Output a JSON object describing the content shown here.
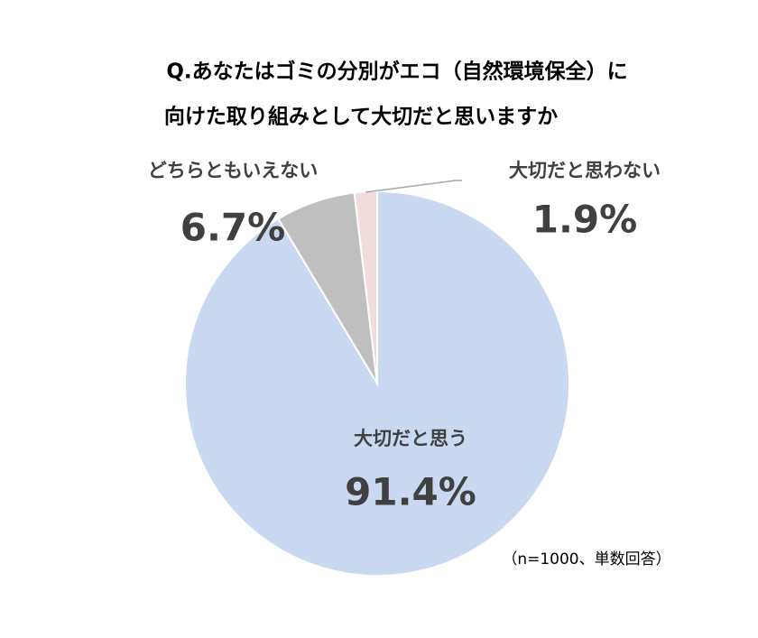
{
  "chart_data": {
    "type": "pie",
    "title": [
      "Q.あなたはゴミの分別がエコ（自然環境保全）に",
      "向けた取り組みとして大切だと思いますか"
    ],
    "categories": [
      "大切だと思う",
      "どちらともいえない",
      "大切だと思わない"
    ],
    "values": [
      91.4,
      6.7,
      1.9
    ],
    "value_labels": [
      "91.4%",
      "6.7%",
      "1.9%"
    ],
    "colors": [
      "#c9d9f1",
      "#bfbfbf",
      "#f2dcdb"
    ],
    "note": "（n=1000、単数回答）"
  }
}
